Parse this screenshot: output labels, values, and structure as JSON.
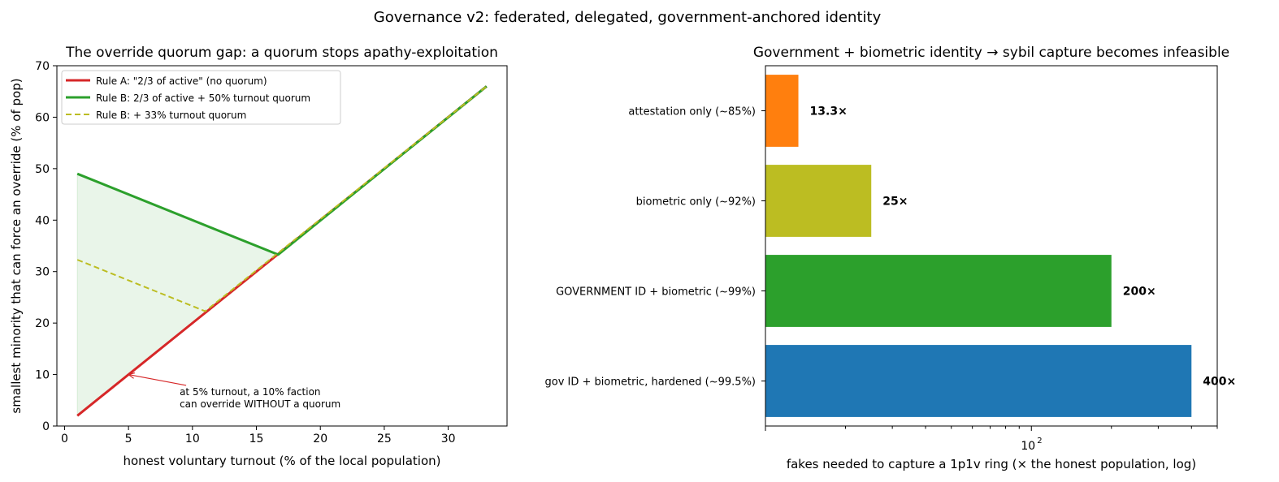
{
  "suptitle": "Governance v2: federated, delegated, government-anchored identity",
  "colors": {
    "rule_a": "#d62728",
    "rule_b": "#2ca02c",
    "rule_b_33": "#bcbd22",
    "fill": "#2ca02c",
    "annotation": "#d62728"
  },
  "chart_data": [
    {
      "type": "line",
      "title": "The override quorum gap: a quorum stops apathy-exploitation",
      "xlabel": "honest voluntary turnout (% of the local population)",
      "ylabel": "smallest minority that can force an override (% of pop)",
      "xlim": [
        -0.6,
        34.6
      ],
      "ylim": [
        0,
        70
      ],
      "xticks": [
        0,
        5,
        10,
        15,
        20,
        25,
        30
      ],
      "yticks": [
        0,
        10,
        20,
        30,
        40,
        50,
        60,
        70
      ],
      "grid": false,
      "legend_position": "top-left",
      "series": [
        {
          "name": "Rule A: \"2/3 of active\" (no quorum)",
          "color": "#d62728",
          "style": "solid",
          "x": [
            1,
            33
          ],
          "y": [
            2,
            66
          ]
        },
        {
          "name": "Rule B: 2/3 of active + 50% turnout quorum",
          "color": "#2ca02c",
          "style": "solid",
          "x": [
            1,
            16.7,
            33
          ],
          "y": [
            49,
            33.3,
            66
          ]
        },
        {
          "name": "Rule B: + 33% turnout quorum",
          "color": "#bcbd22",
          "style": "dashed",
          "x": [
            1,
            11,
            33
          ],
          "y": [
            32.3,
            22.3,
            66
          ]
        }
      ],
      "fill_between": {
        "x": [
          1,
          16.7
        ],
        "lower": [
          2,
          33.3
        ],
        "upper": [
          49,
          33.3
        ]
      },
      "annotation": {
        "lines": [
          "at 5% turnout, a 10% faction",
          "can override WITHOUT a quorum"
        ],
        "point": [
          5,
          10
        ],
        "text_at": [
          9,
          6
        ]
      }
    },
    {
      "type": "bar",
      "orientation": "horizontal",
      "title": "Government + biometric identity → sybil capture becomes infeasible",
      "xlabel": "fakes needed to capture a 1p1v ring (× the honest population, log)",
      "xscale": "log",
      "xlim": [
        10,
        500
      ],
      "xtick_label": "10",
      "xtick_exponent": "2",
      "grid": false,
      "categories": [
        "attestation only (~85%)",
        "biometric only (~92%)",
        "GOVERNMENT ID + biometric (~99%)",
        "gov ID + biometric, hardened (~99.5%)"
      ],
      "values": [
        13.3,
        25,
        200,
        400
      ],
      "value_labels": [
        "13.3×",
        "25×",
        "200×",
        "400×"
      ],
      "bar_colors": [
        "#ff7f0e",
        "#bcbd22",
        "#2ca02c",
        "#1f77b4"
      ]
    }
  ]
}
